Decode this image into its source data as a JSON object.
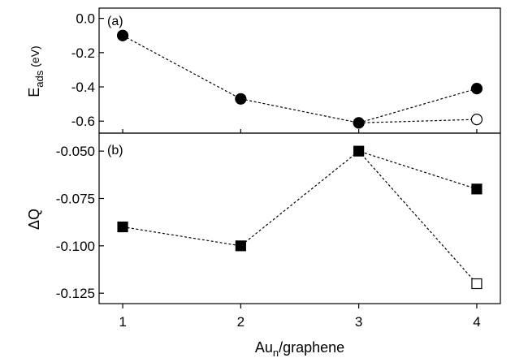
{
  "chart_data": [
    {
      "type": "scatter",
      "panel_label": "(a)",
      "ylabel": "E",
      "ylabel_sub": "ads",
      "ylabel_unit": "(eV)",
      "xlim": [
        0.8,
        4.2
      ],
      "ylim": [
        -0.67,
        0.06
      ],
      "yticks": [
        {
          "value": 0.0,
          "label": "0.0"
        },
        {
          "value": -0.2,
          "label": "-0.2"
        },
        {
          "value": -0.4,
          "label": "-0.4"
        },
        {
          "value": -0.6,
          "label": "-0.6"
        }
      ],
      "series": [
        {
          "marker": "circle",
          "filled": true,
          "x": [
            1,
            2,
            3,
            4
          ],
          "values": [
            -0.1,
            -0.47,
            -0.61,
            -0.41
          ]
        },
        {
          "marker": "circle",
          "filled": false,
          "x": [
            3,
            4
          ],
          "values": [
            -0.61,
            -0.59
          ]
        }
      ]
    },
    {
      "type": "scatter",
      "panel_label": "(b)",
      "ylabel": "ΔQ",
      "xlabel": "Au",
      "xlabel_sub": "n",
      "xlabel_suffix": "/graphene",
      "xlim": [
        0.8,
        4.2
      ],
      "ylim": [
        -0.1305,
        -0.0405
      ],
      "yticks": [
        {
          "value": -0.05,
          "label": "-0.050"
        },
        {
          "value": -0.075,
          "label": "-0.075"
        },
        {
          "value": -0.1,
          "label": "-0.100"
        },
        {
          "value": -0.125,
          "label": "-0.125"
        }
      ],
      "xticks": [
        {
          "value": 1,
          "label": "1"
        },
        {
          "value": 2,
          "label": "2"
        },
        {
          "value": 3,
          "label": "3"
        },
        {
          "value": 4,
          "label": "4"
        }
      ],
      "series": [
        {
          "marker": "square",
          "filled": true,
          "x": [
            1,
            2,
            3,
            4
          ],
          "values": [
            -0.09,
            -0.1,
            -0.05,
            -0.07
          ]
        },
        {
          "marker": "square",
          "filled": false,
          "x": [
            3,
            4
          ],
          "values": [
            -0.05,
            -0.12
          ]
        }
      ]
    }
  ]
}
